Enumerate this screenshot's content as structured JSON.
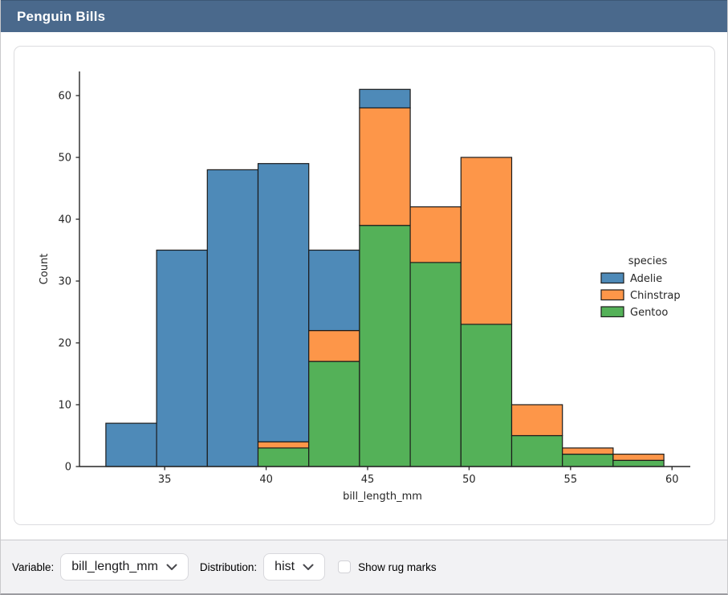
{
  "window": {
    "title": "Penguin Bills"
  },
  "theme": {
    "header_bg": "#4a698c",
    "header_text": "#ffffff",
    "panel_border": "#dcdcdf",
    "controlbar_bg": "#f2f2f4",
    "axis_color": "#262626",
    "bar_edge_color": "#1b1b1b"
  },
  "chart_data": {
    "type": "bar",
    "subtype": "stacked-histogram",
    "title": "",
    "xlabel": "bill_length_mm",
    "ylabel": "Count",
    "bin_edges": [
      32.1,
      34.6,
      37.1,
      39.6,
      42.1,
      44.6,
      47.1,
      49.6,
      52.1,
      54.6,
      57.1,
      59.6
    ],
    "series": [
      {
        "name": "Adelie",
        "color": "#4e8ab8",
        "values": [
          7,
          35,
          48,
          45,
          13,
          3,
          0,
          0,
          0,
          0,
          0
        ]
      },
      {
        "name": "Chinstrap",
        "color": "#fd9649",
        "values": [
          0,
          0,
          0,
          1,
          5,
          19,
          9,
          27,
          5,
          1,
          1
        ]
      },
      {
        "name": "Gentoo",
        "color": "#54b158",
        "values": [
          0,
          0,
          0,
          3,
          17,
          39,
          33,
          23,
          5,
          2,
          1
        ]
      }
    ],
    "stack_order": [
      "Gentoo",
      "Chinstrap",
      "Adelie"
    ],
    "bin_totals": [
      7,
      35,
      48,
      49,
      35,
      61,
      42,
      50,
      10,
      3,
      2
    ],
    "x_ticks": [
      35,
      40,
      45,
      50,
      55,
      60
    ],
    "y_ticks": [
      0,
      10,
      20,
      30,
      40,
      50,
      60
    ],
    "xlim": [
      30.8,
      60.9
    ],
    "ylim": [
      0,
      63.9
    ],
    "grid": false,
    "legend": {
      "title": "species",
      "position": "right",
      "entries": [
        {
          "label": "Adelie",
          "color": "#4e8ab8"
        },
        {
          "label": "Chinstrap",
          "color": "#fd9649"
        },
        {
          "label": "Gentoo",
          "color": "#54b158"
        }
      ]
    }
  },
  "controls": {
    "variable_label": "Variable:",
    "variable_value": "bill_length_mm",
    "distribution_label": "Distribution:",
    "distribution_value": "hist",
    "rug_label": "Show rug marks",
    "rug_checked": false
  }
}
